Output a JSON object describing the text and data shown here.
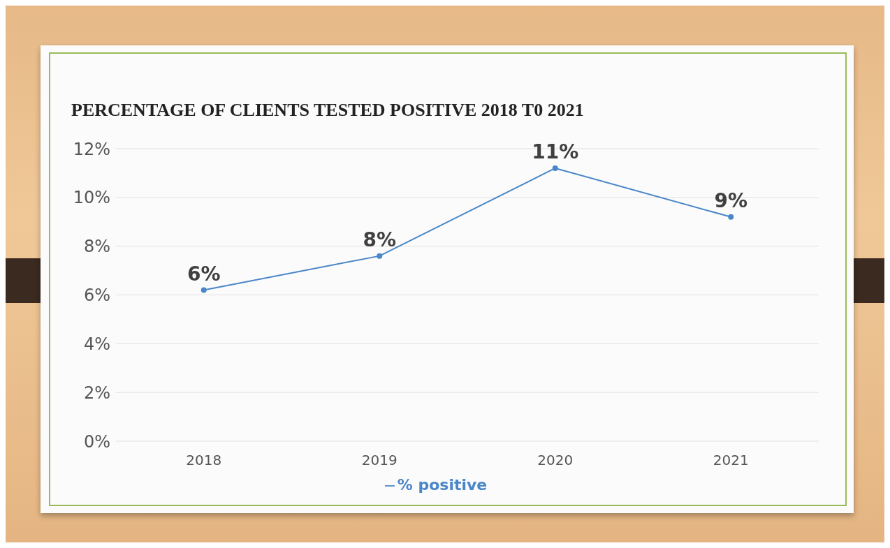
{
  "chart_data": {
    "type": "line",
    "title": "PERCENTAGE OF CLIENTS TESTED POSITIVE 2018 T0 2021",
    "categories": [
      "2018",
      "2019",
      "2020",
      "2021"
    ],
    "series": [
      {
        "name": "% positive",
        "color": "#4a86c8",
        "values": [
          6.2,
          7.6,
          11.2,
          9.2
        ],
        "value_labels": [
          "6%",
          "8%",
          "11%",
          "9%"
        ]
      }
    ],
    "ylim": [
      0,
      12
    ],
    "yticks": [
      {
        "value": 0,
        "label": "0%"
      },
      {
        "value": 2,
        "label": "2%"
      },
      {
        "value": 4,
        "label": "4%"
      },
      {
        "value": 6,
        "label": "6%"
      },
      {
        "value": 8,
        "label": "8%"
      },
      {
        "value": 10,
        "label": "10%"
      },
      {
        "value": 12,
        "label": "12%"
      }
    ],
    "grid": "y",
    "legend": "bottom",
    "marker": "circle",
    "line_style": "solid"
  }
}
